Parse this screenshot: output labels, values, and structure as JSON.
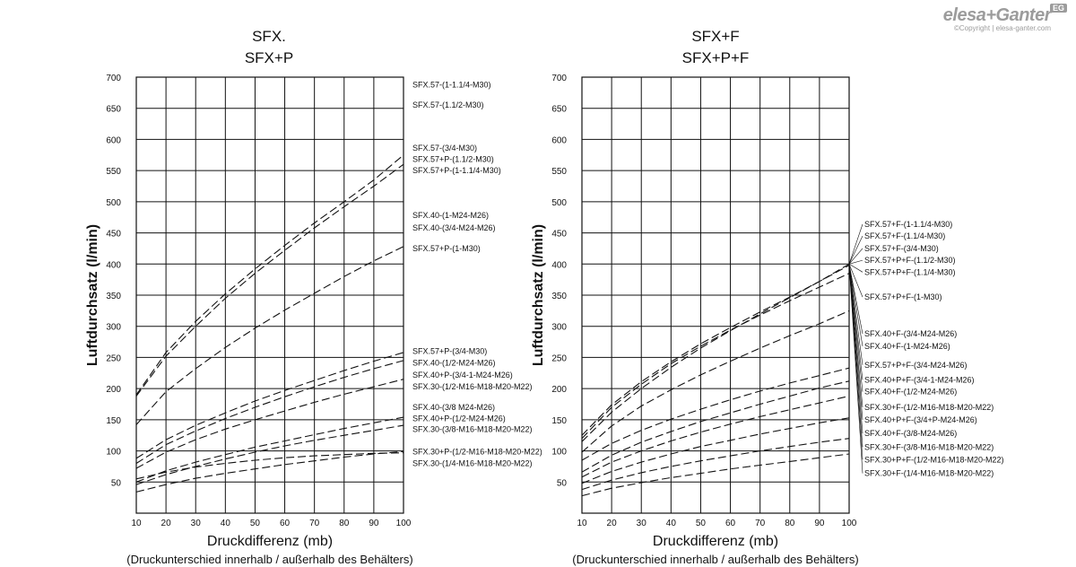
{
  "brand": {
    "name": "elesa+Ganter",
    "badge": "EG",
    "copyright": "©Copyright | elesa-ganter.com"
  },
  "style": {
    "line_color": "#111111",
    "grid_color": "#111111"
  },
  "chart_data": [
    {
      "type": "line",
      "title": [
        "SFX.",
        "SFX+P"
      ],
      "xlabel": "Druckdifferenz (mb)",
      "xsublabel": "(Druckunterschied innerhalb / außerhalb des Behälters)",
      "ylabel": "Luftdurchsatz (l/min)",
      "xlim": [
        10,
        100
      ],
      "ylim": [
        0,
        700
      ],
      "xticks": [
        10,
        20,
        30,
        40,
        50,
        60,
        70,
        80,
        90,
        100
      ],
      "yticks": [
        50,
        100,
        150,
        200,
        250,
        300,
        350,
        400,
        450,
        500,
        550,
        600,
        650,
        700
      ],
      "grid": true,
      "line_style": "dashed",
      "series": [
        {
          "x": [
            10,
            20,
            30,
            40,
            50,
            60,
            70,
            80,
            90,
            100
          ],
          "y": [
            188,
            252,
            300,
            345,
            385,
            422,
            458,
            492,
            525,
            560
          ]
        },
        {
          "x": [
            10,
            20,
            30,
            40,
            50,
            60,
            70,
            80,
            90,
            100
          ],
          "y": [
            190,
            258,
            308,
            352,
            392,
            430,
            466,
            500,
            535,
            575
          ]
        },
        {
          "x": [
            10,
            20,
            30,
            40,
            50,
            60,
            70,
            80,
            90,
            100
          ],
          "y": [
            142,
            195,
            232,
            266,
            297,
            326,
            353,
            380,
            405,
            428
          ]
        },
        {
          "x": [
            10,
            20,
            30,
            40,
            50,
            60,
            70,
            80,
            90,
            100
          ],
          "y": [
            88,
            118,
            141,
            161,
            180,
            197,
            213,
            229,
            244,
            258
          ]
        },
        {
          "x": [
            10,
            20,
            30,
            40,
            50,
            60,
            70,
            80,
            90,
            100
          ],
          "y": [
            80,
            110,
            132,
            152,
            170,
            187,
            203,
            218,
            232,
            245
          ]
        },
        {
          "x": [
            10,
            20,
            30,
            40,
            50,
            60,
            70,
            80,
            90,
            100
          ],
          "y": [
            72,
            98,
            118,
            135,
            150,
            164,
            178,
            191,
            203,
            215
          ]
        },
        {
          "x": [
            10,
            20,
            30,
            40,
            50,
            60,
            70,
            80,
            90,
            100
          ],
          "y": [
            50,
            68,
            82,
            94,
            106,
            116,
            126,
            136,
            145,
            154
          ]
        },
        {
          "x": [
            10,
            20,
            30,
            40,
            50,
            60,
            70,
            80,
            90,
            100
          ],
          "y": [
            46,
            62,
            75,
            87,
            98,
            108,
            117,
            125,
            133,
            141
          ]
        },
        {
          "x": [
            10,
            20,
            30,
            40,
            50,
            60,
            70,
            80,
            90,
            100
          ],
          "y": [
            34,
            46,
            56,
            64,
            71,
            78,
            84,
            90,
            95,
            99
          ]
        },
        {
          "x": [
            10,
            20,
            30,
            40,
            50,
            60,
            70,
            80,
            90,
            100
          ],
          "y": [
            55,
            66,
            74,
            80,
            85,
            89,
            92,
            94,
            96,
            97
          ]
        }
      ],
      "annotations": [
        {
          "text": "SFX.57-(1-1.1/4-M30)",
          "y": 688
        },
        {
          "text": "SFX.57-(1.1/2-M30)",
          "y": 655
        },
        {
          "text": "SFX.57-(3/4-M30)",
          "y": 586
        },
        {
          "text": "SFX.57+P-(1.1/2-M30)",
          "y": 568
        },
        {
          "text": "SFX.57+P-(1-1.1/4-M30)",
          "y": 550
        },
        {
          "text": "SFX.40-(1-M24-M26)",
          "y": 478
        },
        {
          "text": "SFX.40-(3/4-M24-M26)",
          "y": 458
        },
        {
          "text": "SFX.57+P-(1-M30)",
          "y": 425
        },
        {
          "text": "SFX.57+P-(3/4-M30)",
          "y": 260
        },
        {
          "text": "SFX.40-(1/2-M24-M26)",
          "y": 241
        },
        {
          "text": "SFX.40+P-(3/4-1-M24-M26)",
          "y": 222
        },
        {
          "text": "SFX.30-(1/2-M16-M18-M20-M22)",
          "y": 203
        },
        {
          "text": "SFX.40-(3/8 M24-M26)",
          "y": 170
        },
        {
          "text": "SFX.40+P-(1/2-M24-M26)",
          "y": 152
        },
        {
          "text": "SFX.30-(3/8-M16-M18-M20-M22)",
          "y": 135
        },
        {
          "text": "SFX.30+P-(1/2-M16-M18-M20-M22)",
          "y": 99
        },
        {
          "text": "SFX.30-(1/4-M16-M18-M20-M22)",
          "y": 80
        }
      ]
    },
    {
      "type": "line",
      "title": [
        "SFX+F",
        "SFX+P+F"
      ],
      "xlabel": "Druckdifferenz (mb)",
      "xsublabel": "(Druckunterschied innerhalb / außerhalb des Behälters)",
      "ylabel": "Luftdurchsatz (l/min)",
      "xlim": [
        10,
        100
      ],
      "ylim": [
        0,
        700
      ],
      "xticks": [
        10,
        20,
        30,
        40,
        50,
        60,
        70,
        80,
        90,
        100
      ],
      "yticks": [
        50,
        100,
        150,
        200,
        250,
        300,
        350,
        400,
        450,
        500,
        550,
        600,
        650,
        700
      ],
      "grid": true,
      "line_style": "dashed",
      "series": [
        {
          "x": [
            10,
            20,
            30,
            40,
            50,
            60,
            70,
            80,
            90,
            100
          ],
          "y": [
            120,
            170,
            207,
            240,
            268,
            294,
            318,
            341,
            363,
            385
          ]
        },
        {
          "x": [
            10,
            20,
            30,
            40,
            50,
            60,
            70,
            80,
            90,
            100
          ],
          "y": [
            125,
            174,
            211,
            243,
            272,
            298,
            323,
            347,
            372,
            398
          ]
        },
        {
          "x": [
            10,
            20,
            30,
            40,
            50,
            60,
            70,
            80,
            90,
            100
          ],
          "y": [
            115,
            162,
            200,
            234,
            265,
            293,
            320,
            346,
            372,
            400
          ]
        },
        {
          "x": [
            10,
            20,
            30,
            40,
            50,
            60,
            70,
            80,
            90,
            100
          ],
          "y": [
            98,
            140,
            172,
            198,
            222,
            244,
            265,
            285,
            304,
            325
          ]
        },
        {
          "x": [
            10,
            20,
            30,
            40,
            50,
            60,
            70,
            80,
            90,
            100
          ],
          "y": [
            66,
            93,
            114,
            131,
            147,
            161,
            175,
            188,
            201,
            212
          ]
        },
        {
          "x": [
            10,
            20,
            30,
            40,
            50,
            60,
            70,
            80,
            90,
            100
          ],
          "y": [
            85,
            112,
            133,
            151,
            167,
            182,
            196,
            209,
            221,
            233
          ]
        },
        {
          "x": [
            10,
            20,
            30,
            40,
            50,
            60,
            70,
            80,
            90,
            100
          ],
          "y": [
            58,
            82,
            100,
            116,
            130,
            143,
            155,
            166,
            177,
            188
          ]
        },
        {
          "x": [
            10,
            20,
            30,
            40,
            50,
            60,
            70,
            80,
            90,
            100
          ],
          "y": [
            48,
            67,
            82,
            95,
            107,
            117,
            127,
            136,
            145,
            153
          ]
        },
        {
          "x": [
            10,
            20,
            30,
            40,
            50,
            60,
            70,
            80,
            90,
            100
          ],
          "y": [
            38,
            53,
            65,
            75,
            84,
            92,
            100,
            107,
            114,
            120
          ]
        },
        {
          "x": [
            10,
            20,
            30,
            40,
            50,
            60,
            70,
            80,
            90,
            100
          ],
          "y": [
            28,
            40,
            49,
            57,
            64,
            71,
            77,
            83,
            89,
            95
          ]
        }
      ],
      "annotations": [
        {
          "text": "SFX.57+F-(1-1.1/4-M30)",
          "y": 464
        },
        {
          "text": "SFX.57+F-(1.1/4-M30)",
          "y": 445
        },
        {
          "text": "SFX.57+F-(3/4-M30)",
          "y": 425
        },
        {
          "text": "SFX.57+P+F-(1.1/2-M30)",
          "y": 406
        },
        {
          "text": "SFX.57+P+F-(1.1/4-M30)",
          "y": 387
        },
        {
          "text": "SFX.57+P+F-(1-M30)",
          "y": 347
        },
        {
          "text": "SFX.40+F-(3/4-M24-M26)",
          "y": 288
        },
        {
          "text": "SFX.40+F-(1-M24-M26)",
          "y": 268
        },
        {
          "text": "SFX.57+P+F-(3/4-M24-M26)",
          "y": 238
        },
        {
          "text": "SFX.40+P+F-(3/4-1-M24-M26)",
          "y": 214
        },
        {
          "text": "SFX.40+F-(1/2-M24-M26)",
          "y": 195
        },
        {
          "text": "SFX.30+F-(1/2-M16-M18-M20-M22)",
          "y": 170
        },
        {
          "text": "SFX.40+P+F-(3/4+P-M24-M26)",
          "y": 150
        },
        {
          "text": "SFX.40+F-(3/8-M24-M26)",
          "y": 128
        },
        {
          "text": "SFX.30+F-(3/8-M16-M18-M20-M22)",
          "y": 106
        },
        {
          "text": "SFX.30+P+F-(1/2-M16-M18-M20-M22)",
          "y": 86
        },
        {
          "text": "SFX.30+F-(1/4-M16-M18-M20-M22)",
          "y": 64
        }
      ]
    }
  ]
}
